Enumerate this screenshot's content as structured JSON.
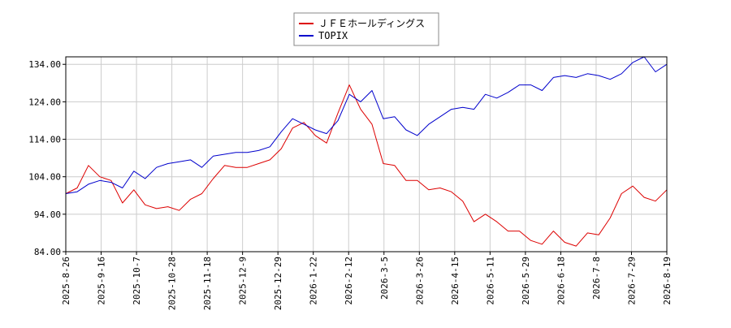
{
  "chart_data": {
    "type": "line",
    "title": "",
    "xlabel": "",
    "ylabel": "",
    "ylim": [
      84,
      136
    ],
    "yticks": [
      84.0,
      94.0,
      104.0,
      114.0,
      124.0,
      134.0
    ],
    "ytick_labels": [
      "84.00",
      "94.00",
      "104.00",
      "114.00",
      "124.00",
      "134.00"
    ],
    "xtick_labels": [
      "2025-8-26",
      "2025-9-16",
      "2025-10-7",
      "2025-10-28",
      "2025-11-18",
      "2025-12-9",
      "2025-12-29",
      "2026-1-22",
      "2026-2-12",
      "2026-3-5",
      "2026-3-26",
      "2026-4-15",
      "2026-5-11",
      "2026-5-29",
      "2026-6-18",
      "2026-7-8",
      "2026-7-29",
      "2026-8-19"
    ],
    "grid": true,
    "legend": "top-center",
    "x": [
      "2025-8-26",
      "2025-9-2",
      "2025-9-9",
      "2025-9-16",
      "2025-9-23",
      "2025-9-30",
      "2025-10-7",
      "2025-10-14",
      "2025-10-21",
      "2025-10-28",
      "2025-11-4",
      "2025-11-11",
      "2025-11-18",
      "2025-11-25",
      "2025-12-2",
      "2025-12-9",
      "2025-12-16",
      "2025-12-23",
      "2025-12-29",
      "2026-1-8",
      "2026-1-15",
      "2026-1-22",
      "2026-1-29",
      "2026-2-5",
      "2026-2-9",
      "2026-2-12",
      "2026-2-19",
      "2026-2-26",
      "2026-3-5",
      "2026-3-12",
      "2026-3-19",
      "2026-3-26",
      "2026-4-2",
      "2026-4-9",
      "2026-4-15",
      "2026-4-22",
      "2026-4-30",
      "2026-5-11",
      "2026-5-18",
      "2026-5-22",
      "2026-5-29",
      "2026-6-5",
      "2026-6-12",
      "2026-6-18",
      "2026-6-25",
      "2026-7-1",
      "2026-7-8",
      "2026-7-15",
      "2026-7-22",
      "2026-7-29",
      "2026-8-5",
      "2026-8-12",
      "2026-8-19",
      "2026-8-25"
    ],
    "series": [
      {
        "name": "ＪＦＥホールディングス",
        "color": "#dd0000",
        "values": [
          99.5,
          101.0,
          107.0,
          104.0,
          103.0,
          97.0,
          100.5,
          96.5,
          95.5,
          96.0,
          95.0,
          98.0,
          99.5,
          103.5,
          107.0,
          106.5,
          106.5,
          107.5,
          108.5,
          111.5,
          117.0,
          118.5,
          115.0,
          113.0,
          121.0,
          128.5,
          122.0,
          118.0,
          107.5,
          107.0,
          103.0,
          103.0,
          100.5,
          101.0,
          100.0,
          97.5,
          92.0,
          94.0,
          92.0,
          89.5,
          89.5,
          87.0,
          86.0,
          89.5,
          86.5,
          85.5,
          89.0,
          88.5,
          93.0,
          99.5,
          101.5,
          98.5,
          97.5,
          100.5
        ]
      },
      {
        "name": "TOPIX",
        "color": "#0000cc",
        "values": [
          99.5,
          100.0,
          102.0,
          103.0,
          102.5,
          101.0,
          105.5,
          103.5,
          106.5,
          107.5,
          108.0,
          108.5,
          106.5,
          109.5,
          110.0,
          110.5,
          110.5,
          111.0,
          112.0,
          116.0,
          119.5,
          118.0,
          116.5,
          115.5,
          119.0,
          126.0,
          124.0,
          127.0,
          119.5,
          120.0,
          116.5,
          115.0,
          118.0,
          120.0,
          122.0,
          122.5,
          122.0,
          126.0,
          125.0,
          126.5,
          128.5,
          128.5,
          127.0,
          130.5,
          131.0,
          130.5,
          131.5,
          131.0,
          130.0,
          131.5,
          134.5,
          136.0,
          132.0,
          134.0
        ]
      }
    ]
  }
}
